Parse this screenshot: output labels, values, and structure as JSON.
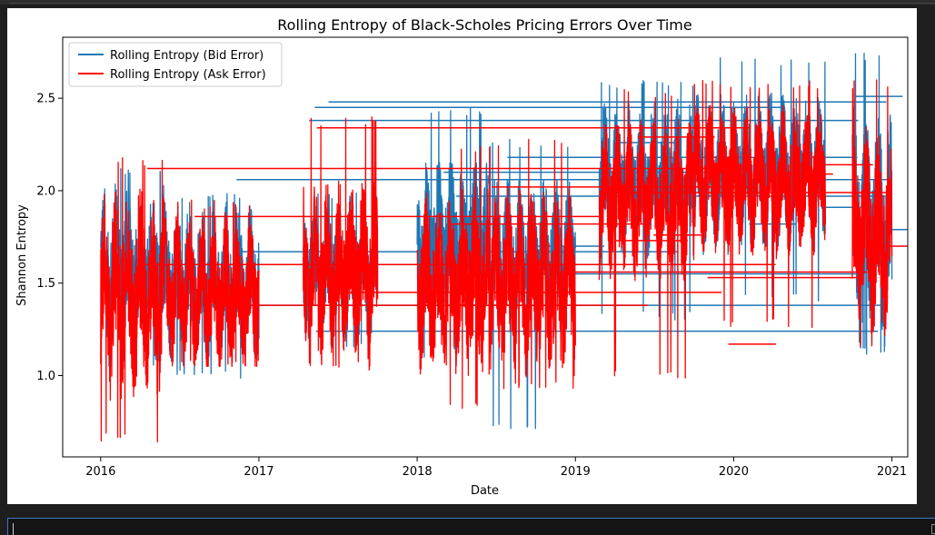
{
  "chart_data": {
    "type": "line",
    "title": "Rolling Entropy of Black-Scholes Pricing Errors Over Time",
    "xlabel": "Date",
    "ylabel": "Shannon Entropy",
    "xlim": [
      2015.76,
      2021.1
    ],
    "ylim": [
      0.56,
      2.83
    ],
    "x_ticks": [
      "2016",
      "2017",
      "2018",
      "2019",
      "2020",
      "2021"
    ],
    "y_ticks": [
      "1.0",
      "1.5",
      "2.0",
      "2.5"
    ],
    "legend_position": "top-left",
    "grid": false,
    "series": [
      {
        "name": "Rolling Entropy (Bid Error)",
        "color": "#1f77b4",
        "segments": [
          {
            "x_start": 2016.0,
            "x_end": 2016.4,
            "mean": 1.55,
            "amp": 0.33,
            "min": 1.05,
            "max": 2.13
          },
          {
            "x_start": 2016.4,
            "x_end": 2017.0,
            "mean": 1.5,
            "amp": 0.3,
            "min": 0.98,
            "max": 2.0
          },
          {
            "x_start": 2017.28,
            "x_end": 2017.75,
            "mean": 1.55,
            "amp": 0.28,
            "min": 1.15,
            "max": 2.0
          },
          {
            "x_start": 2018.0,
            "x_end": 2018.45,
            "mean": 1.75,
            "amp": 0.3,
            "min": 1.1,
            "max": 2.45
          },
          {
            "x_start": 2018.45,
            "x_end": 2019.0,
            "mean": 1.65,
            "amp": 0.3,
            "min": 0.71,
            "max": 2.28
          },
          {
            "x_start": 2019.15,
            "x_end": 2019.75,
            "mean": 2.05,
            "amp": 0.3,
            "min": 1.3,
            "max": 2.6
          },
          {
            "x_start": 2019.75,
            "x_end": 2020.58,
            "mean": 2.1,
            "amp": 0.3,
            "min": 1.4,
            "max": 2.72
          },
          {
            "x_start": 2020.75,
            "x_end": 2021.0,
            "mean": 1.8,
            "amp": 0.45,
            "min": 1.1,
            "max": 2.75
          }
        ],
        "step_levels": [
          2.51,
          2.48,
          2.45,
          2.38,
          2.26,
          2.18,
          2.1,
          2.06,
          1.97,
          1.91,
          1.82,
          1.79,
          1.7,
          1.67,
          1.55,
          1.38,
          1.24
        ]
      },
      {
        "name": "Rolling Entropy (Ask Error)",
        "color": "#ff0000",
        "segments": [
          {
            "x_start": 2016.0,
            "x_end": 2016.4,
            "mean": 1.45,
            "amp": 0.4,
            "min": 0.64,
            "max": 2.18
          },
          {
            "x_start": 2016.4,
            "x_end": 2017.0,
            "mean": 1.45,
            "amp": 0.3,
            "min": 1.05,
            "max": 1.95
          },
          {
            "x_start": 2017.28,
            "x_end": 2017.75,
            "mean": 1.55,
            "amp": 0.35,
            "min": 1.03,
            "max": 2.4
          },
          {
            "x_start": 2018.0,
            "x_end": 2018.45,
            "mean": 1.5,
            "amp": 0.35,
            "min": 0.8,
            "max": 2.25
          },
          {
            "x_start": 2018.45,
            "x_end": 2019.0,
            "mean": 1.5,
            "amp": 0.35,
            "min": 0.92,
            "max": 2.28
          },
          {
            "x_start": 2019.15,
            "x_end": 2019.75,
            "mean": 1.95,
            "amp": 0.3,
            "min": 0.98,
            "max": 2.55
          },
          {
            "x_start": 2019.75,
            "x_end": 2020.58,
            "mean": 2.05,
            "amp": 0.28,
            "min": 1.26,
            "max": 2.6
          },
          {
            "x_start": 2020.75,
            "x_end": 2021.0,
            "mean": 1.75,
            "amp": 0.4,
            "min": 1.02,
            "max": 2.6
          }
        ],
        "step_levels": [
          2.34,
          2.29,
          2.14,
          2.12,
          2.09,
          2.02,
          1.99,
          1.86,
          1.82,
          1.76,
          1.73,
          1.7,
          1.6,
          1.56,
          1.53,
          1.45,
          1.38,
          1.17
        ]
      }
    ]
  }
}
